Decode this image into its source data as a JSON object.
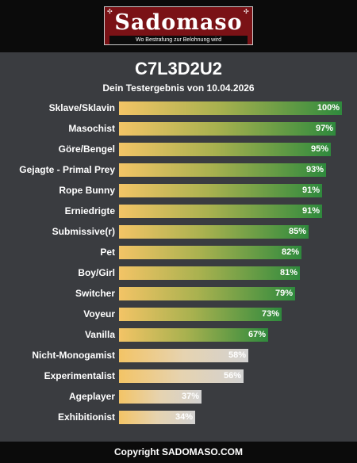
{
  "header": {
    "logo_name": "Sadomaso",
    "logo_tagline": "Wo Bestrafung zur Belohnung wird"
  },
  "result": {
    "title": "C7L3D2U2",
    "subtitle": "Dein Testergebnis von 10.04.2026"
  },
  "colors": {
    "bar_green_end": "#2f8a3d",
    "bar_start": "#f3c466",
    "bar_grey_end": "#d2d2d2",
    "background": "#3a3c40"
  },
  "chart_data": {
    "type": "bar",
    "orientation": "horizontal",
    "xlim": [
      0,
      100
    ],
    "categories": [
      "Sklave/Sklavin",
      "Masochist",
      "Göre/Bengel",
      "Gejagte - Primal Prey",
      "Rope Bunny",
      "Erniedrigte",
      "Submissive(r)",
      "Pet",
      "Boy/Girl",
      "Switcher",
      "Voyeur",
      "Vanilla",
      "Nicht-Monogamist",
      "Experimentalist",
      "Ageplayer",
      "Exhibitionist"
    ],
    "values": [
      100,
      97,
      95,
      93,
      91,
      91,
      85,
      82,
      81,
      79,
      73,
      67,
      58,
      56,
      37,
      34
    ],
    "labels": [
      "100%",
      "97%",
      "95%",
      "93%",
      "91%",
      "91%",
      "85%",
      "82%",
      "81%",
      "79%",
      "73%",
      "67%",
      "58%",
      "56%",
      "37%",
      "34%"
    ],
    "bar_style": [
      "green",
      "green",
      "green",
      "green",
      "green",
      "green",
      "green",
      "green",
      "green",
      "green",
      "green",
      "green",
      "grey",
      "grey",
      "grey",
      "grey"
    ]
  },
  "footer": {
    "copyright": "Copyright SADOMASO.COM"
  }
}
